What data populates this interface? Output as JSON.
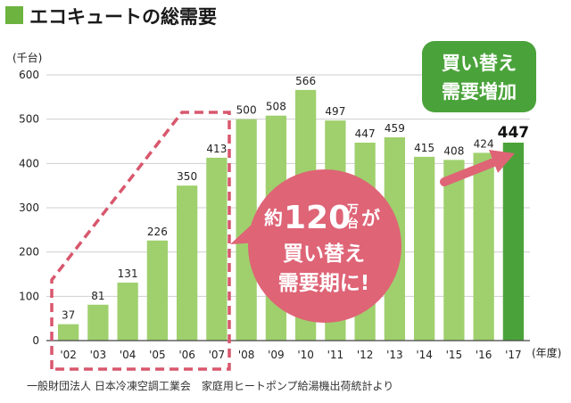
{
  "title": "エコキュートの総需要",
  "source": "一般財団法人 日本冷凍空調工業会　家庭用ヒートポンプ給湯機出荷統計より",
  "colors": {
    "title_square": "#6cb33f",
    "bar": "#9fd06d",
    "bar_highlight": "#4aa33a",
    "dashed_box": "#d8576d",
    "bubble": "#de6476",
    "green_callout": "#4aa33a"
  },
  "callout_bubble": {
    "prefix": "約",
    "number": "120",
    "unit_top": "万",
    "unit_bottom": "台",
    "suffix": "が",
    "line2": "買い替え",
    "line3": "需要期に!"
  },
  "callout_green": {
    "line1": "買い替え",
    "line2": "需要増加"
  },
  "chart_data": {
    "type": "bar",
    "ylabel": "(千台)",
    "xlabel": "(年度)",
    "ylim": [
      0,
      600
    ],
    "yticks": [
      0,
      100,
      200,
      300,
      400,
      500,
      600
    ],
    "grid": true,
    "categories": [
      "'02",
      "'03",
      "'04",
      "'05",
      "'06",
      "'07",
      "'08",
      "'09",
      "'10",
      "'11",
      "'12",
      "'13",
      "'14",
      "'15",
      "'16",
      "'17"
    ],
    "values": [
      37,
      81,
      131,
      226,
      350,
      413,
      500,
      508,
      566,
      497,
      447,
      459,
      415,
      408,
      424,
      447
    ],
    "highlight_index": 15
  }
}
